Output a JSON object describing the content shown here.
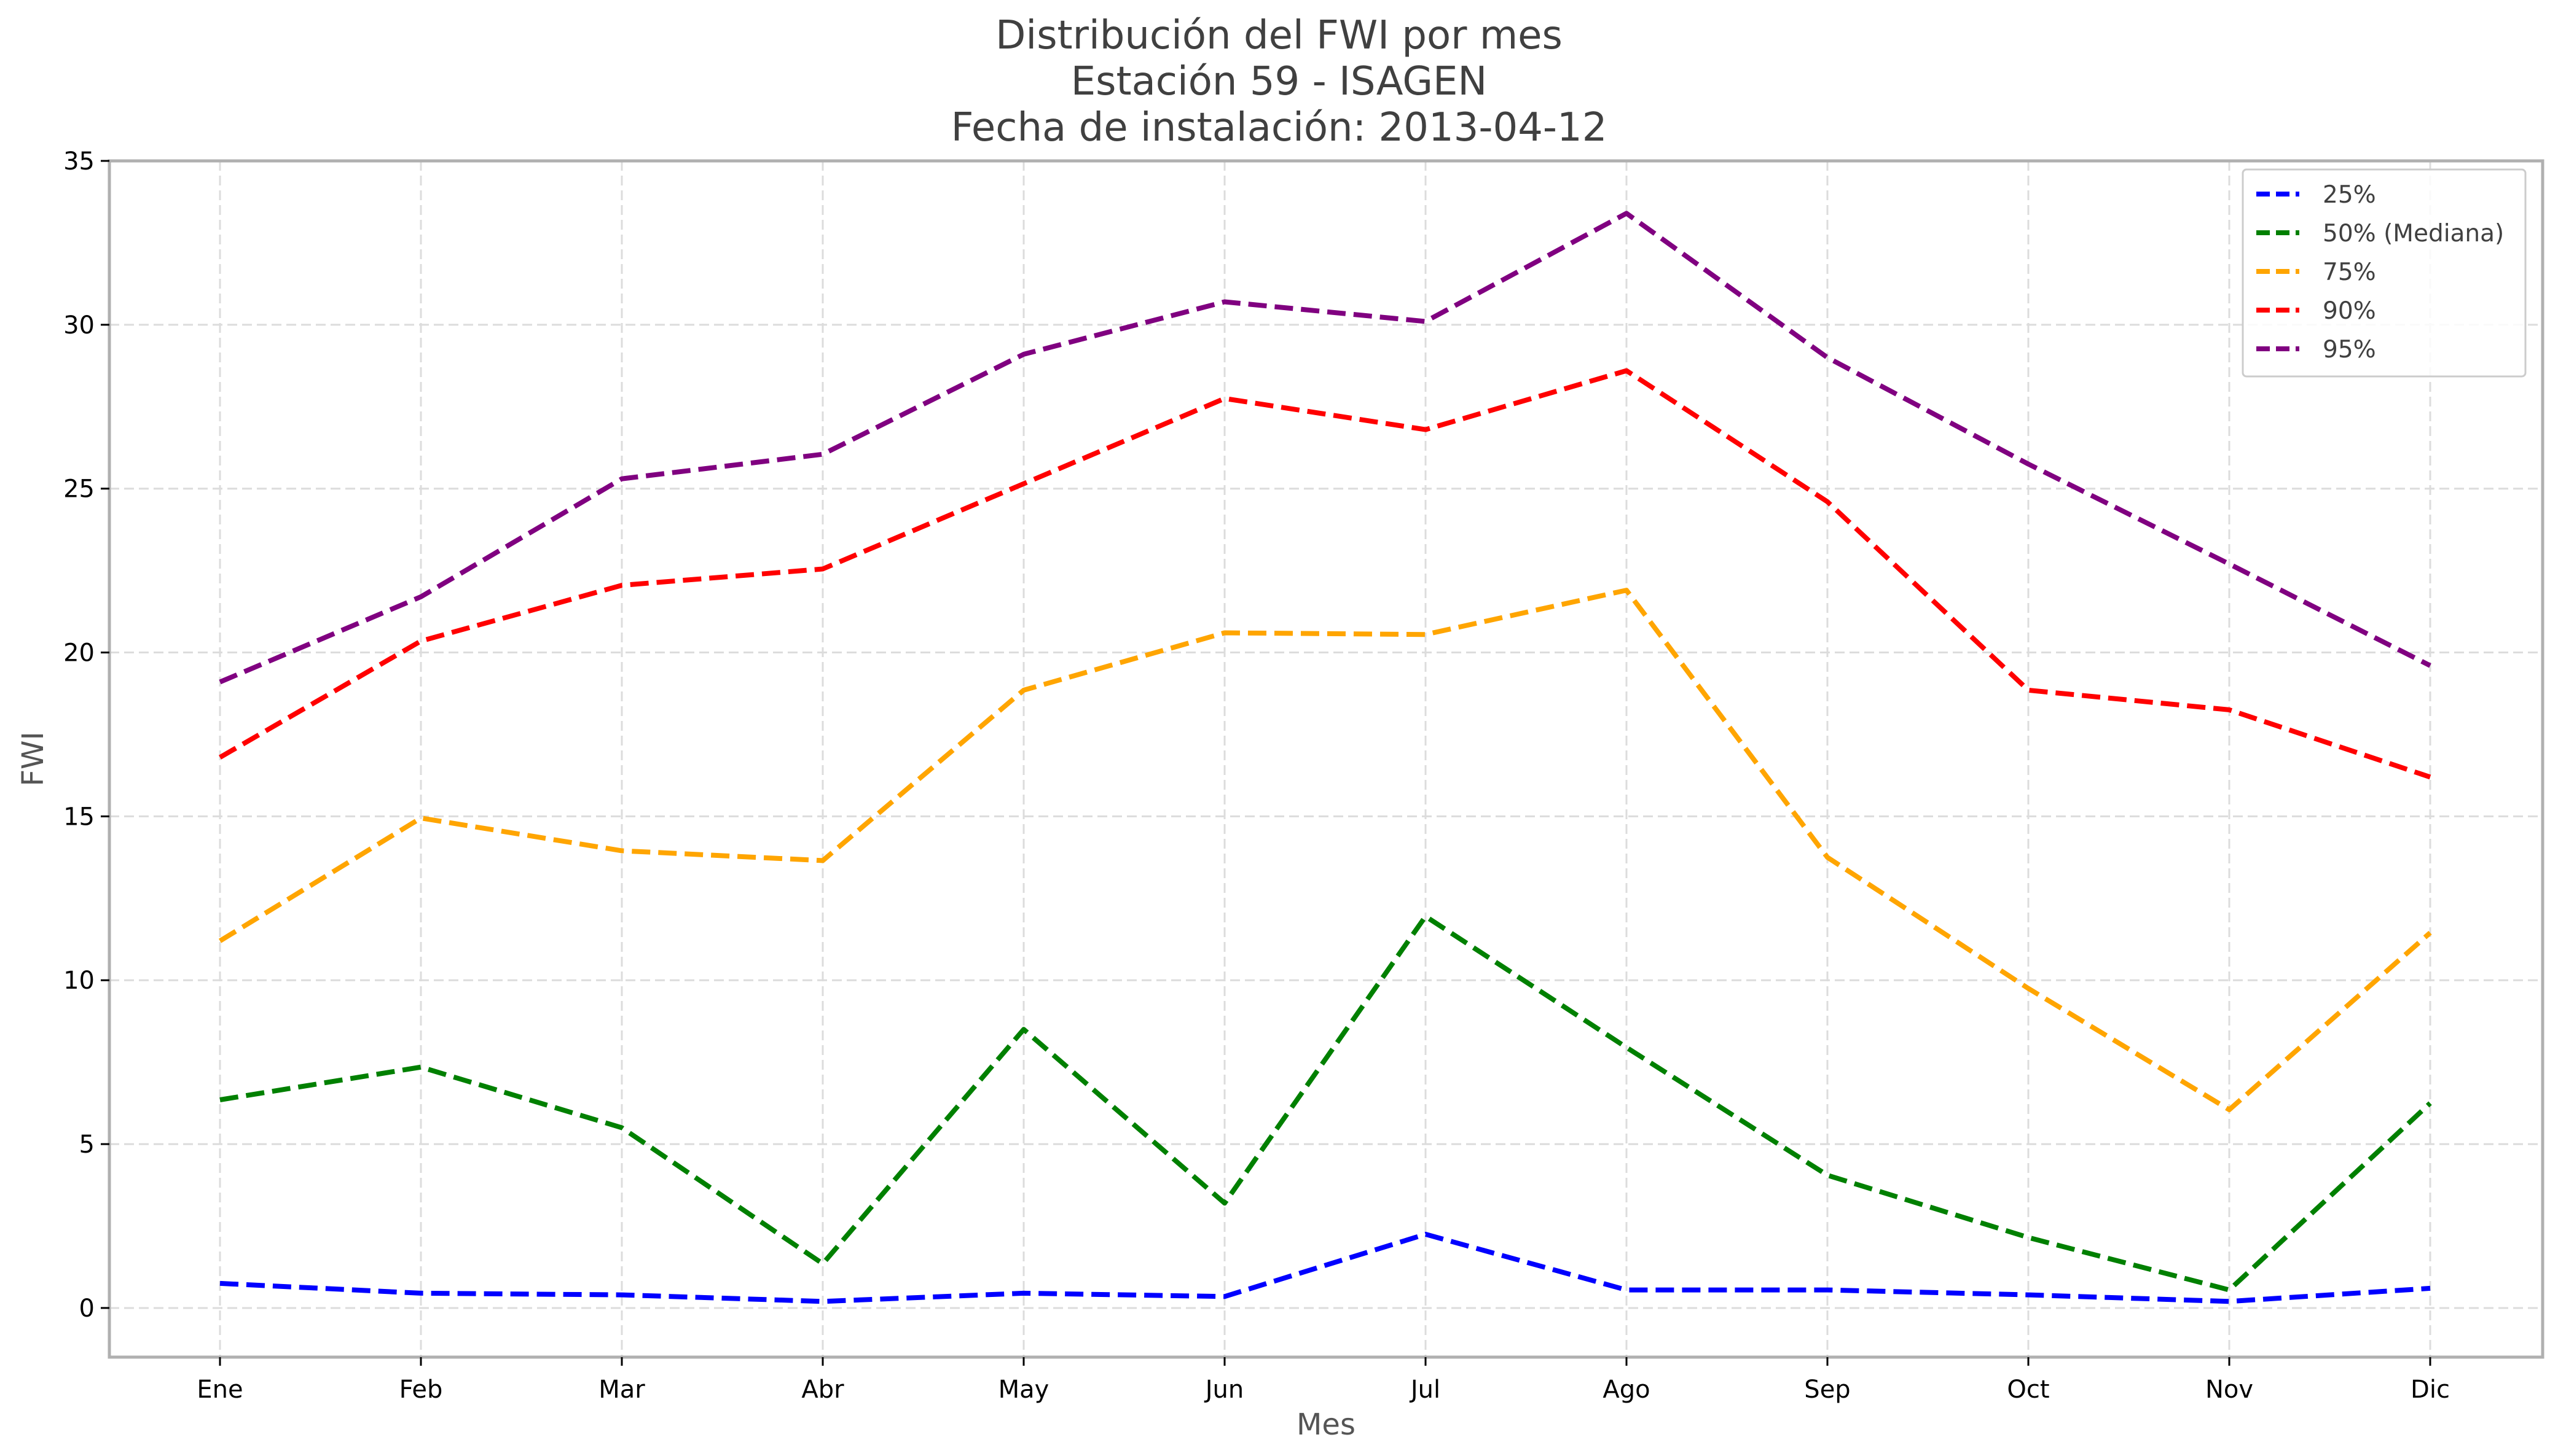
{
  "chart_data": {
    "type": "line",
    "title": "Distribución del FWI por mes",
    "subtitle": "Estación 59 - ISAGEN",
    "subtitle2": "Fecha de instalación: 2013-04-12",
    "xlabel": "Mes",
    "ylabel": "FWI",
    "categories": [
      "Ene",
      "Feb",
      "Mar",
      "Abr",
      "May",
      "Jun",
      "Jul",
      "Ago",
      "Sep",
      "Oct",
      "Nov",
      "Dic"
    ],
    "ylim": [
      -1.5,
      35
    ],
    "yticks": [
      0,
      5,
      10,
      15,
      20,
      25,
      30,
      35
    ],
    "grid": true,
    "legend_position": "top-right",
    "series": [
      {
        "name": "25%",
        "color": "#0000ff",
        "values": [
          0.75,
          0.45,
          0.4,
          0.2,
          0.45,
          0.35,
          2.25,
          0.55,
          0.55,
          0.4,
          0.2,
          0.6
        ]
      },
      {
        "name": "50% (Mediana)",
        "color": "#008000",
        "values": [
          6.35,
          7.35,
          5.5,
          1.35,
          8.5,
          3.2,
          11.95,
          7.95,
          4.05,
          2.15,
          0.55,
          6.25
        ]
      },
      {
        "name": "75%",
        "color": "#ffa500",
        "values": [
          11.2,
          14.95,
          13.95,
          13.65,
          18.85,
          20.6,
          20.55,
          21.9,
          13.75,
          9.75,
          6.05,
          11.45
        ]
      },
      {
        "name": "90%",
        "color": "#ff0000",
        "values": [
          16.8,
          20.35,
          22.05,
          22.55,
          25.15,
          27.75,
          26.8,
          28.6,
          24.6,
          18.85,
          18.25,
          16.2
        ]
      },
      {
        "name": "95%",
        "color": "#800080",
        "values": [
          19.1,
          21.7,
          25.3,
          26.05,
          29.1,
          30.7,
          30.1,
          33.4,
          29.0,
          25.75,
          22.7,
          19.6
        ]
      }
    ]
  }
}
